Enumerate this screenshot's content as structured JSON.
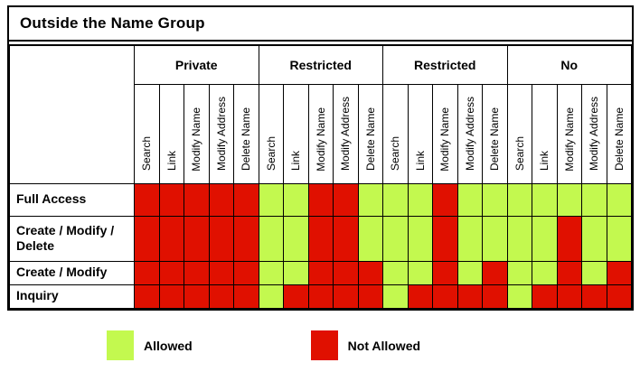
{
  "title": "Outside the Name Group",
  "colors": {
    "allowed": "#c3f94f",
    "not_allowed": "#e01000",
    "border": "#000000"
  },
  "legend": {
    "allowed": "Allowed",
    "not_allowed": "Not Allowed"
  },
  "table": {
    "code_key": {
      "A": "Allowed",
      "N": "Not Allowed"
    },
    "groups": [
      {
        "label": "Private",
        "columns": [
          "Search",
          "Link",
          "Modify Name",
          "Modify Address",
          "Delete Name"
        ]
      },
      {
        "label": "Restricted",
        "columns": [
          "Search",
          "Link",
          "Modify Name",
          "Modify Address",
          "Delete Name"
        ]
      },
      {
        "label": "Restricted",
        "columns": [
          "Search",
          "Link",
          "Modify Name",
          "Modify Address",
          "Delete Name"
        ]
      },
      {
        "label": "No",
        "columns": [
          "Search",
          "Link",
          "Modify Name",
          "Modify Address",
          "Delete Name"
        ]
      }
    ],
    "rows": [
      {
        "label": "Full Access",
        "cells": [
          "N",
          "N",
          "N",
          "N",
          "N",
          "A",
          "A",
          "N",
          "N",
          "A",
          "A",
          "A",
          "N",
          "A",
          "A",
          "A",
          "A",
          "A",
          "A",
          "A"
        ]
      },
      {
        "label": "Create / Modify / Delete",
        "cells": [
          "N",
          "N",
          "N",
          "N",
          "N",
          "A",
          "A",
          "N",
          "N",
          "A",
          "A",
          "A",
          "N",
          "A",
          "A",
          "A",
          "A",
          "N",
          "A",
          "A"
        ]
      },
      {
        "label": "Create / Modify",
        "cells": [
          "N",
          "N",
          "N",
          "N",
          "N",
          "A",
          "A",
          "N",
          "N",
          "N",
          "A",
          "A",
          "N",
          "A",
          "N",
          "A",
          "A",
          "N",
          "A",
          "N"
        ]
      },
      {
        "label": "Inquiry",
        "cells": [
          "N",
          "N",
          "N",
          "N",
          "N",
          "A",
          "N",
          "N",
          "N",
          "N",
          "A",
          "N",
          "N",
          "N",
          "N",
          "A",
          "N",
          "N",
          "N",
          "N"
        ]
      }
    ]
  }
}
